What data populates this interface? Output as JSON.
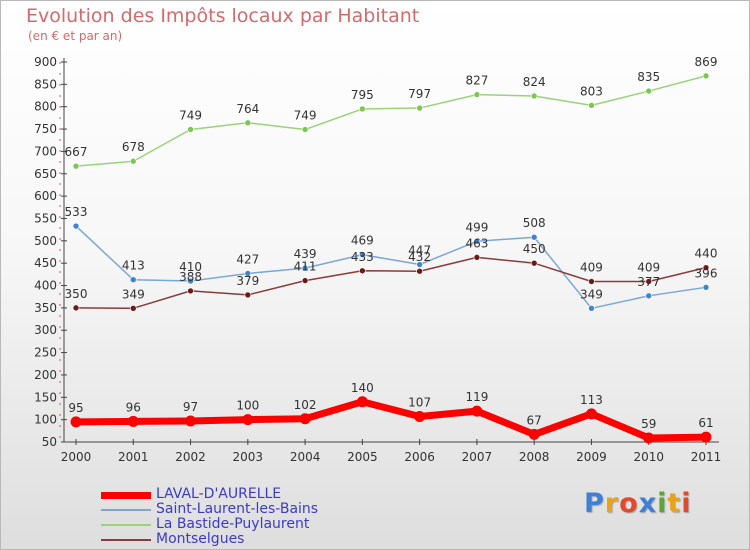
{
  "title": "Evolution des Impôts locaux par Habitant",
  "subtitle": "(en € et par an)",
  "logo": {
    "text": "Proxiti",
    "colors": [
      "#3f7fd6",
      "#e8a31b",
      "#e04a2a",
      "#3f7fd6",
      "#5aa832",
      "#e8a31b",
      "#e04a2a"
    ]
  },
  "chart_data": {
    "type": "line",
    "x": [
      "2000",
      "2001",
      "2002",
      "2003",
      "2004",
      "2005",
      "2006",
      "2007",
      "2008",
      "2009",
      "2010",
      "2011"
    ],
    "ylim": [
      50,
      900
    ],
    "yticks": [
      50,
      100,
      150,
      200,
      250,
      300,
      350,
      400,
      450,
      500,
      550,
      600,
      650,
      700,
      750,
      800,
      850,
      900
    ],
    "grid": false,
    "legend_position": "bottom-left",
    "series": [
      {
        "name": "LAVAL-D'AURELLE",
        "color": "#ff0000",
        "width": 7,
        "point_color": "#ff0000",
        "values": [
          95,
          96,
          97,
          100,
          102,
          140,
          107,
          119,
          67,
          113,
          59,
          61
        ]
      },
      {
        "name": "Saint-Laurent-les-Bains",
        "color": "#7aa6d6",
        "width": 1.5,
        "point_color": "#3f86c8",
        "values": [
          533,
          413,
          410,
          427,
          439,
          469,
          447,
          499,
          508,
          349,
          377,
          396
        ]
      },
      {
        "name": "La Bastide-Puylaurent",
        "color": "#9ad27a",
        "width": 1.5,
        "point_color": "#7ac852",
        "values": [
          667,
          678,
          749,
          764,
          749,
          795,
          797,
          827,
          824,
          803,
          835,
          869
        ]
      },
      {
        "name": "Montselgues",
        "color": "#8a3a3a",
        "width": 1.5,
        "point_color": "#6b1a1a",
        "values": [
          350,
          349,
          388,
          379,
          411,
          433,
          432,
          463,
          450,
          409,
          409,
          440
        ]
      }
    ],
    "labels": [
      {
        "series": 0,
        "values": [
          "95",
          "96",
          "97",
          "100",
          "102",
          "140",
          "107",
          "119",
          "67",
          "113",
          "59",
          "61"
        ]
      },
      {
        "series": 1,
        "values": [
          "533",
          "413",
          "410",
          "427",
          "439",
          "469",
          "447",
          "499",
          "508",
          "349",
          "377",
          "396"
        ]
      },
      {
        "series": 2,
        "values": [
          "667",
          "678",
          "749",
          "764",
          "749",
          "795",
          "797",
          "827",
          "824",
          "803",
          "835",
          "869"
        ]
      },
      {
        "series": 3,
        "values": [
          "350",
          "349",
          "388",
          "379",
          "411",
          "433",
          "432",
          "463",
          "450",
          "409",
          "409",
          "440"
        ]
      }
    ]
  }
}
